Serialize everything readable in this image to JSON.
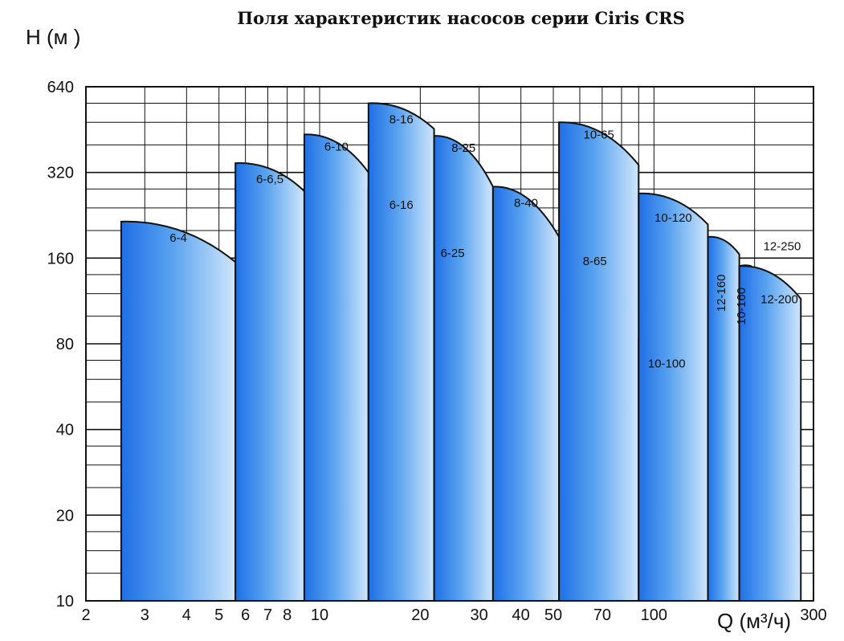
{
  "chart_data": {
    "type": "area",
    "title": "Поля характеристик насосов серии Ciris CRS",
    "ylabel": "H (м )",
    "xlabel": "Q (м³/ч)",
    "x_scale": "log",
    "y_scale": "log",
    "xlim": [
      2,
      300
    ],
    "ylim": [
      10,
      640
    ],
    "x_ticks": [
      2,
      3,
      4,
      5,
      6,
      7,
      8,
      10,
      20,
      30,
      40,
      50,
      70,
      100,
      300
    ],
    "x_tick_labels": [
      "2",
      "3",
      "4",
      "5",
      "6",
      "7",
      "8",
      "10",
      "20",
      "30",
      "40",
      "50",
      "70",
      "100",
      "300"
    ],
    "y_ticks": [
      10,
      20,
      40,
      80,
      160,
      320,
      640
    ],
    "y_tick_labels": [
      "10",
      "20",
      "40",
      "80",
      "160",
      "320",
      "640"
    ],
    "grid": true,
    "fill_gradient": [
      "#1f6fe6",
      "#5aa3f0",
      "#cfe6fb"
    ],
    "outline_color": "#111111",
    "series": [
      {
        "name": "6-4",
        "x_min": 2.55,
        "x_max": 5.6,
        "h_max": 215,
        "h_end": 155
      },
      {
        "name": "6-6,5",
        "x_min": 5.6,
        "x_max": 9.0,
        "h_max": 345,
        "h_end": 275
      },
      {
        "name": "6-10",
        "x_min": 9.0,
        "x_max": 14.0,
        "h_max": 435,
        "h_end": 320
      },
      {
        "name": "6-16",
        "x_min": 14.0,
        "x_max": 22.0,
        "h_max": 280,
        "h_end": 215
      },
      {
        "name": "8-16",
        "x_min": 14.0,
        "x_max": 22.0,
        "h_max": 560,
        "h_end": 455
      },
      {
        "name": "6-25",
        "x_min": 22.0,
        "x_max": 30.0,
        "h_max": 190,
        "h_end": 152
      },
      {
        "name": "8-25",
        "x_min": 22.0,
        "x_max": 33.0,
        "h_max": 430,
        "h_end": 285
      },
      {
        "name": "8-40",
        "x_min": 33.0,
        "x_max": 52.0,
        "h_max": 285,
        "h_end": 190
      },
      {
        "name": "8-65",
        "x_min": 52.0,
        "x_max": 90.0,
        "h_max": 190,
        "h_end": 115
      },
      {
        "name": "10-65",
        "x_min": 52.0,
        "x_max": 90.0,
        "h_max": 480,
        "h_end": 340
      },
      {
        "name": "10-100",
        "x_min": 90.0,
        "x_max": 140.0,
        "h_max": 83,
        "h_end": 57
      },
      {
        "name": "10-120",
        "x_min": 90.0,
        "x_max": 145.0,
        "h_max": 270,
        "h_end": 210
      },
      {
        "name": "12-160",
        "x_min": 145.0,
        "x_max": 180.0,
        "h_max": 190,
        "h_end": 165
      },
      {
        "name": "10-160",
        "x_min": 180.0,
        "x_max": 195.0,
        "h_max": 150,
        "h_end": 150
      },
      {
        "name": "12-200",
        "x_min": 190.0,
        "x_max": 265.0,
        "h_max": 135,
        "h_end": 100
      },
      {
        "name": "12-250",
        "x_min": 180.0,
        "x_max": 275.0,
        "h_max": 150,
        "h_end": 115
      }
    ]
  }
}
